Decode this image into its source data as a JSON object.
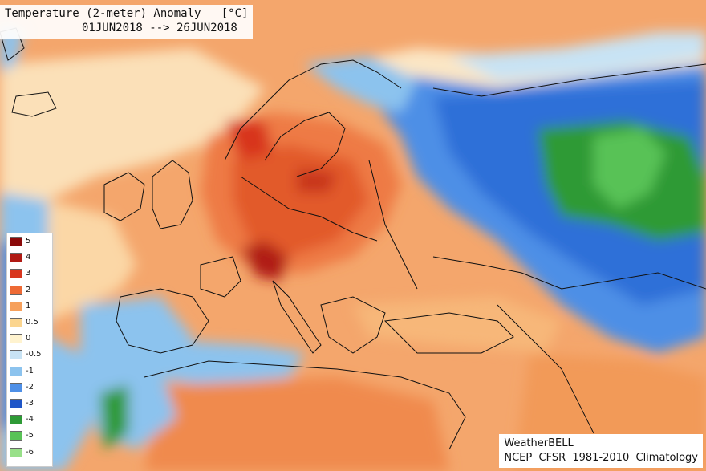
{
  "header": {
    "title": "Temperature (2-meter) Anomaly   [°C]",
    "date_range": "01JUN2018 --> 26JUN2018"
  },
  "legend": {
    "entries": [
      {
        "label": "5",
        "color": "#8b0a0a"
      },
      {
        "label": "4",
        "color": "#b01a14"
      },
      {
        "label": "3",
        "color": "#d8361e"
      },
      {
        "label": "2",
        "color": "#ee6a35"
      },
      {
        "label": "1",
        "color": "#f6a05c"
      },
      {
        "label": "0.5",
        "color": "#fbd58f"
      },
      {
        "label": "0",
        "color": "#fff3cf"
      },
      {
        "label": "-0.5",
        "color": "#c8e3f4"
      },
      {
        "label": "-1",
        "color": "#8cc3ee"
      },
      {
        "label": "-2",
        "color": "#4e8fe6"
      },
      {
        "label": "-3",
        "color": "#1f56c8"
      },
      {
        "label": "-4",
        "color": "#2e9a36"
      },
      {
        "label": "-5",
        "color": "#59c257"
      },
      {
        "label": "-6",
        "color": "#98e089"
      }
    ]
  },
  "credits": {
    "source": "WeatherBELL",
    "dataset": "NCEP  CFSR  1981-2010  Climatology"
  },
  "colors": {
    "warm_strong": "#c0321f",
    "warm": "#f2a36a",
    "neutral": "#fbe6c5",
    "cool": "#8cc3ee",
    "cold": "#3a7fe0",
    "very_cold": "#2e9a36"
  }
}
